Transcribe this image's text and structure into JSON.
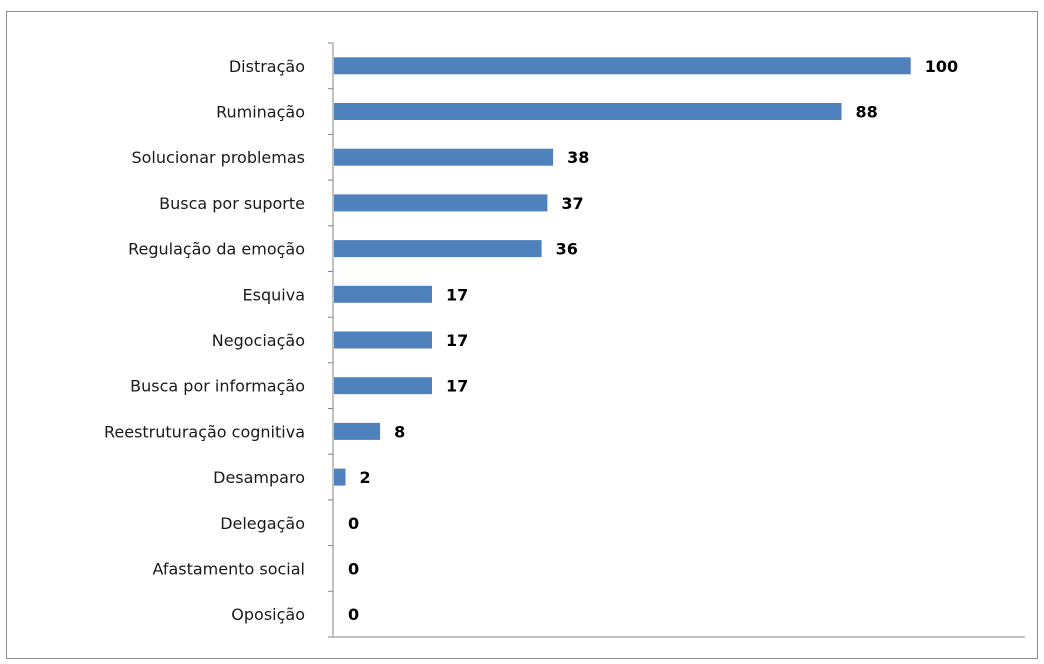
{
  "chart_data": {
    "type": "bar",
    "orientation": "horizontal",
    "categories": [
      "Distração",
      "Ruminação",
      "Solucionar problemas",
      "Busca por suporte",
      "Regulação da emoção",
      "Esquiva",
      "Negociação",
      "Busca por informação",
      "Reestruturação cognitiva",
      "Desamparo",
      "Delegação",
      "Afastamento social",
      "Oposição"
    ],
    "values": [
      100,
      88,
      38,
      37,
      36,
      17,
      17,
      17,
      8,
      2,
      0,
      0,
      0
    ],
    "xlim": [
      0,
      120
    ],
    "data_labels": true,
    "legend": "none",
    "grid": false,
    "bar_color": "#4f81bd",
    "axis_color": "#868686"
  }
}
